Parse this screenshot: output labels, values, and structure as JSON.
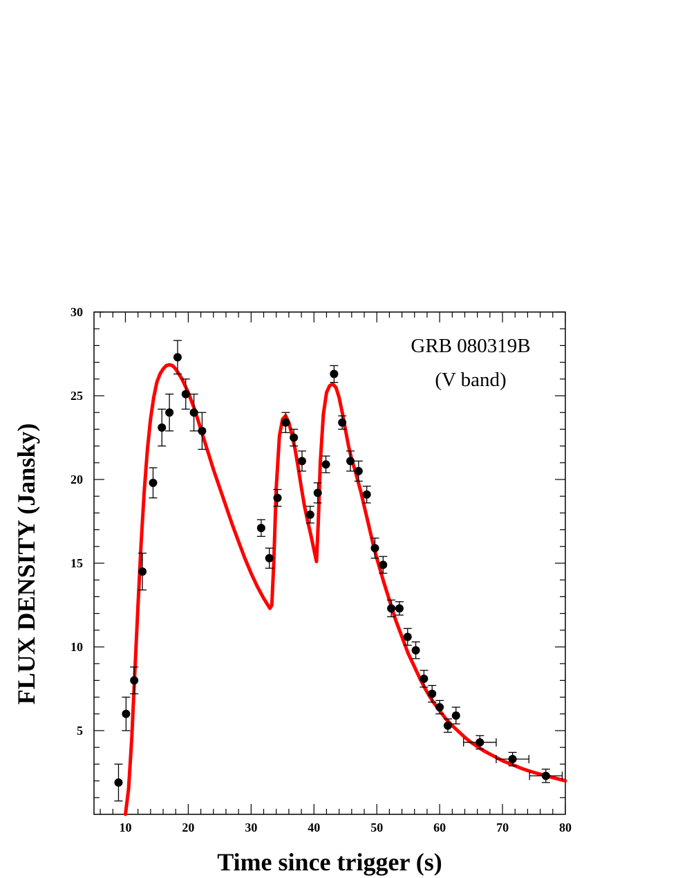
{
  "chart_data": {
    "type": "scatter",
    "xlabel": "Time since trigger (s)",
    "ylabel": "FLUX DENSITY (Jansky)",
    "annotation_lines": [
      "GRB 080319B",
      "(V band)"
    ],
    "xlim": [
      5,
      80
    ],
    "ylim": [
      0,
      30
    ],
    "xticks": [
      10,
      20,
      30,
      40,
      50,
      60,
      70,
      80
    ],
    "yticks": [
      5,
      10,
      15,
      20,
      25,
      30
    ],
    "grid": false,
    "colors": {
      "points": "#000000",
      "model_curve": "#ff0000",
      "axes": "#000000"
    },
    "series": [
      {
        "kind": "points_with_errorbars",
        "points": [
          {
            "x": 8.9,
            "y": 1.9,
            "yerr": 1.1
          },
          {
            "x": 10.1,
            "y": 6.0,
            "yerr": 1.0
          },
          {
            "x": 11.4,
            "y": 8.0,
            "yerr": 0.8
          },
          {
            "x": 12.7,
            "y": 14.5,
            "yerr": 1.1
          },
          {
            "x": 14.4,
            "y": 19.8,
            "yerr": 0.9
          },
          {
            "x": 15.8,
            "y": 23.1,
            "yerr": 1.1
          },
          {
            "x": 17.0,
            "y": 24.0,
            "yerr": 1.1
          },
          {
            "x": 18.3,
            "y": 27.3,
            "yerr": 1.0
          },
          {
            "x": 19.6,
            "y": 25.1,
            "yerr": 0.9
          },
          {
            "x": 20.9,
            "y": 24.0,
            "yerr": 1.1
          },
          {
            "x": 22.2,
            "y": 22.9,
            "yerr": 1.1
          },
          {
            "x": 31.6,
            "y": 17.1,
            "yerr": 0.5
          },
          {
            "x": 32.9,
            "y": 15.3,
            "yerr": 0.6
          },
          {
            "x": 34.2,
            "y": 18.9,
            "yerr": 0.5
          },
          {
            "x": 35.5,
            "y": 23.4,
            "yerr": 0.6
          },
          {
            "x": 36.8,
            "y": 22.5,
            "yerr": 0.5
          },
          {
            "x": 38.1,
            "y": 21.1,
            "yerr": 0.6
          },
          {
            "x": 39.4,
            "y": 17.9,
            "yerr": 0.5
          },
          {
            "x": 40.6,
            "y": 19.2,
            "yerr": 0.6
          },
          {
            "x": 41.9,
            "y": 20.9,
            "yerr": 0.5
          },
          {
            "x": 43.2,
            "y": 26.3,
            "yerr": 0.5
          },
          {
            "x": 44.5,
            "y": 23.4,
            "yerr": 0.4
          },
          {
            "x": 45.8,
            "y": 21.1,
            "yerr": 0.6
          },
          {
            "x": 47.1,
            "y": 20.5,
            "yerr": 0.6
          },
          {
            "x": 48.4,
            "y": 19.1,
            "yerr": 0.5
          },
          {
            "x": 49.7,
            "y": 15.9,
            "yerr": 0.6
          },
          {
            "x": 51.0,
            "y": 14.9,
            "yerr": 0.5
          },
          {
            "x": 52.3,
            "y": 12.3,
            "yerr": 0.5
          },
          {
            "x": 53.6,
            "y": 12.3,
            "yerr": 0.4
          },
          {
            "x": 54.9,
            "y": 10.6,
            "yerr": 0.5
          },
          {
            "x": 56.2,
            "y": 9.8,
            "yerr": 0.5
          },
          {
            "x": 57.5,
            "y": 8.1,
            "yerr": 0.5
          },
          {
            "x": 58.8,
            "y": 7.2,
            "yerr": 0.5
          },
          {
            "x": 60.0,
            "y": 6.4,
            "yerr": 0.4
          },
          {
            "x": 61.3,
            "y": 5.3,
            "yerr": 0.4
          },
          {
            "x": 62.6,
            "y": 5.9,
            "yerr": 0.5
          },
          {
            "x": 66.4,
            "y": 4.3,
            "yerr": 0.4,
            "xerr": 2.6
          },
          {
            "x": 71.6,
            "y": 3.3,
            "yerr": 0.4,
            "xerr": 2.6
          },
          {
            "x": 76.9,
            "y": 2.3,
            "yerr": 0.4,
            "xerr": 2.6
          }
        ]
      },
      {
        "kind": "model_curve",
        "x": [
          10.0,
          10.5,
          11.0,
          11.5,
          12.0,
          12.5,
          13.0,
          13.5,
          14.0,
          14.5,
          15.0,
          15.5,
          16.0,
          16.5,
          17.0,
          17.5,
          18.0,
          18.5,
          19.0,
          20.0,
          21.0,
          22.0,
          23.0,
          24.0,
          25.0,
          26.0,
          27.0,
          28.0,
          29.0,
          30.0,
          31.0,
          32.0,
          33.0,
          33.3,
          33.6,
          34.0,
          34.5,
          35.0,
          35.5,
          36.0,
          36.5,
          37.0,
          37.5,
          38.0,
          38.5,
          39.0,
          39.5,
          40.0,
          40.4,
          40.7,
          41.0,
          41.5,
          42.0,
          42.5,
          43.0,
          43.5,
          44.0,
          44.5,
          45.0,
          45.5,
          46.0,
          46.5,
          47.0,
          47.5,
          48.0,
          48.5,
          49.0,
          49.5,
          50.0,
          51.0,
          52.0,
          53.0,
          54.0,
          55.0,
          56.0,
          57.0,
          58.0,
          59.0,
          60.0,
          61.0,
          62.0,
          63.0,
          64.0,
          65.0,
          66.0,
          67.0,
          68.0,
          69.0,
          70.0,
          71.0,
          72.0,
          73.0,
          74.0,
          75.0,
          76.0,
          77.0,
          78.0,
          79.0,
          80.0
        ],
        "y": [
          0.0,
          1.5,
          4.5,
          8.5,
          12.5,
          16.2,
          19.3,
          21.8,
          23.6,
          24.9,
          25.8,
          26.3,
          26.6,
          26.8,
          26.85,
          26.8,
          26.6,
          26.3,
          26.0,
          25.2,
          24.2,
          23.0,
          21.8,
          20.6,
          19.5,
          18.4,
          17.3,
          16.3,
          15.3,
          14.4,
          13.6,
          12.9,
          12.3,
          12.5,
          15.0,
          19.5,
          22.6,
          23.6,
          23.8,
          23.4,
          22.7,
          21.8,
          20.7,
          19.5,
          18.4,
          17.5,
          16.7,
          15.8,
          15.1,
          17.5,
          21.0,
          23.9,
          25.2,
          25.6,
          25.7,
          25.5,
          24.9,
          24.0,
          23.0,
          22.0,
          21.2,
          20.6,
          19.9,
          19.2,
          18.4,
          17.6,
          16.8,
          16.0,
          15.3,
          14.0,
          12.8,
          11.6,
          10.6,
          9.6,
          8.8,
          8.0,
          7.3,
          6.7,
          6.2,
          5.7,
          5.3,
          4.95,
          4.6,
          4.3,
          4.05,
          3.8,
          3.6,
          3.4,
          3.2,
          3.05,
          2.9,
          2.75,
          2.62,
          2.5,
          2.4,
          2.3,
          2.2,
          2.1,
          2.0
        ]
      }
    ]
  }
}
